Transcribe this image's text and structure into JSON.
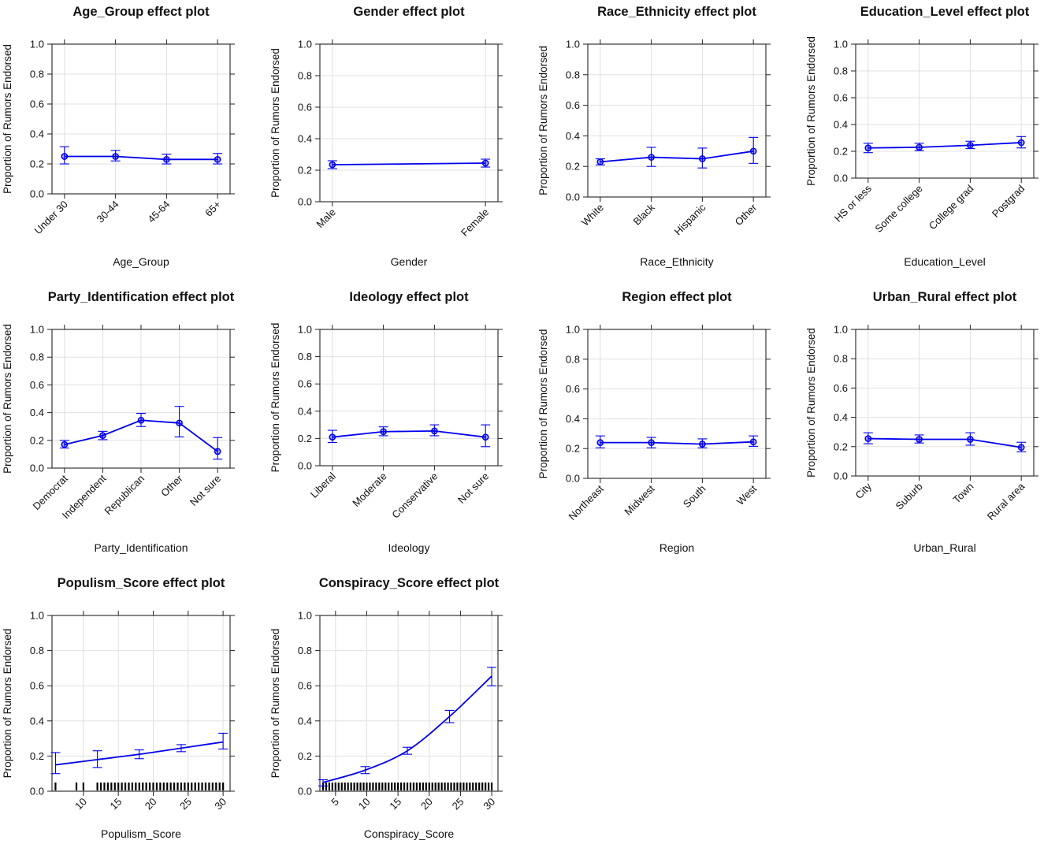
{
  "colors": {
    "series": "#0000ee",
    "grid": "#e0e0e0",
    "axis": "#222222",
    "rug": "#000000"
  },
  "ylabel": "Proportion of Rumors Endorsed",
  "chart_data": [
    {
      "type": "line",
      "title": "Age_Group effect plot",
      "xlabel": "Age_Group",
      "ylabel": "Proportion of Rumors Endorsed",
      "categories": [
        "Under 30",
        "30-44",
        "45-64",
        "65+"
      ],
      "values": [
        0.25,
        0.25,
        0.23,
        0.23
      ],
      "lower": [
        0.2,
        0.22,
        0.2,
        0.2
      ],
      "upper": [
        0.315,
        0.29,
        0.265,
        0.27
      ],
      "ylim": [
        0,
        1
      ],
      "yticks": [
        "0.0",
        "0.2",
        "0.4",
        "0.6",
        "0.8",
        "1.0"
      ]
    },
    {
      "type": "line",
      "title": "Gender effect plot",
      "xlabel": "Gender",
      "ylabel": "Proportion of Rumors Endorsed",
      "categories": [
        "Male",
        "Female"
      ],
      "values": [
        0.235,
        0.245
      ],
      "lower": [
        0.21,
        0.22
      ],
      "upper": [
        0.26,
        0.27
      ],
      "ylim": [
        0,
        1
      ],
      "yticks": [
        "0.0",
        "0.2",
        "0.4",
        "0.6",
        "0.8",
        "1.0"
      ]
    },
    {
      "type": "line",
      "title": "Race_Ethnicity effect plot",
      "xlabel": "Race_Ethnicity",
      "ylabel": "Proportion of Rumors Endorsed",
      "categories": [
        "White",
        "Black",
        "Hispanic",
        "Other"
      ],
      "values": [
        0.23,
        0.26,
        0.25,
        0.3
      ],
      "lower": [
        0.21,
        0.2,
        0.19,
        0.22
      ],
      "upper": [
        0.25,
        0.325,
        0.32,
        0.39
      ],
      "ylim": [
        0,
        1
      ],
      "yticks": [
        "0.0",
        "0.2",
        "0.4",
        "0.6",
        "0.8",
        "1.0"
      ]
    },
    {
      "type": "line",
      "title": "Education_Level effect plot",
      "xlabel": "Education_Level",
      "ylabel": "Proportion of Rumors Endorsed",
      "categories": [
        "HS or less",
        "Some college",
        "College grad",
        "Postgrad"
      ],
      "values": [
        0.225,
        0.23,
        0.245,
        0.265
      ],
      "lower": [
        0.19,
        0.205,
        0.22,
        0.225
      ],
      "upper": [
        0.26,
        0.26,
        0.275,
        0.31
      ],
      "ylim": [
        0,
        1
      ],
      "yticks": [
        "0.0",
        "0.2",
        "0.4",
        "0.6",
        "0.8",
        "1.0"
      ]
    },
    {
      "type": "line",
      "title": "Party_Identification effect plot",
      "xlabel": "Party_Identification",
      "ylabel": "Proportion of Rumors Endorsed",
      "categories": [
        "Democrat",
        "Independent",
        "Republican",
        "Other",
        "Not sure"
      ],
      "values": [
        0.17,
        0.235,
        0.345,
        0.325,
        0.12
      ],
      "lower": [
        0.145,
        0.205,
        0.3,
        0.225,
        0.065
      ],
      "upper": [
        0.2,
        0.265,
        0.395,
        0.445,
        0.22
      ],
      "ylim": [
        0,
        1
      ],
      "yticks": [
        "0.0",
        "0.2",
        "0.4",
        "0.6",
        "0.8",
        "1.0"
      ]
    },
    {
      "type": "line",
      "title": "Ideology effect plot",
      "xlabel": "Ideology",
      "ylabel": "Proportion of Rumors Endorsed",
      "categories": [
        "Liberal",
        "Moderate",
        "Conservative",
        "Not sure"
      ],
      "values": [
        0.21,
        0.25,
        0.255,
        0.21
      ],
      "lower": [
        0.17,
        0.22,
        0.22,
        0.14
      ],
      "upper": [
        0.26,
        0.285,
        0.3,
        0.3
      ],
      "ylim": [
        0,
        1
      ],
      "yticks": [
        "0.0",
        "0.2",
        "0.4",
        "0.6",
        "0.8",
        "1.0"
      ]
    },
    {
      "type": "line",
      "title": "Region effect plot",
      "xlabel": "Region",
      "ylabel": "Proportion of Rumors Endorsed",
      "categories": [
        "Northeast",
        "Midwest",
        "South",
        "West"
      ],
      "values": [
        0.24,
        0.24,
        0.23,
        0.245
      ],
      "lower": [
        0.205,
        0.205,
        0.205,
        0.215
      ],
      "upper": [
        0.285,
        0.275,
        0.265,
        0.285
      ],
      "ylim": [
        0,
        1
      ],
      "yticks": [
        "0.0",
        "0.2",
        "0.4",
        "0.6",
        "0.8",
        "1.0"
      ]
    },
    {
      "type": "line",
      "title": "Urban_Rural effect plot",
      "xlabel": "Urban_Rural",
      "ylabel": "Proportion of Rumors Endorsed",
      "categories": [
        "City",
        "Suburb",
        "Town",
        "Rural area"
      ],
      "values": [
        0.255,
        0.25,
        0.25,
        0.195
      ],
      "lower": [
        0.22,
        0.225,
        0.21,
        0.165
      ],
      "upper": [
        0.295,
        0.28,
        0.295,
        0.23
      ],
      "ylim": [
        0,
        1
      ],
      "yticks": [
        "0.0",
        "0.2",
        "0.4",
        "0.6",
        "0.8",
        "1.0"
      ]
    },
    {
      "type": "line",
      "title": "Populism_Score effect plot",
      "xlabel": "Populism_Score",
      "ylabel": "Proportion of Rumors Endorsed",
      "x": [
        6,
        12,
        18,
        24,
        30
      ],
      "values": [
        0.15,
        0.18,
        0.21,
        0.245,
        0.28
      ],
      "lower": [
        0.1,
        0.135,
        0.185,
        0.225,
        0.24
      ],
      "upper": [
        0.22,
        0.23,
        0.235,
        0.265,
        0.33
      ],
      "xlim": [
        5.5,
        31
      ],
      "xticks": [
        10,
        15,
        20,
        25,
        30
      ],
      "rug": [
        6,
        9,
        10,
        12,
        12.5,
        13,
        13.5,
        14,
        14.5,
        15,
        15.5,
        16,
        16.5,
        17,
        17.5,
        18,
        18.5,
        19,
        19.5,
        20,
        20.5,
        21,
        21.5,
        22,
        22.5,
        23,
        23.5,
        24,
        24.5,
        25,
        25.5,
        26,
        26.5,
        27,
        27.5,
        28,
        28.5,
        29,
        29.5,
        30
      ],
      "ylim": [
        0,
        1
      ],
      "yticks": [
        "0.0",
        "0.2",
        "0.4",
        "0.6",
        "0.8",
        "1.0"
      ]
    },
    {
      "type": "line",
      "title": "Conspiracy_Score effect plot",
      "xlabel": "Conspiracy_Score",
      "ylabel": "Proportion of Rumors Endorsed",
      "x": [
        3,
        9.75,
        16.5,
        23.25,
        30
      ],
      "values": [
        0.05,
        0.12,
        0.23,
        0.425,
        0.655
      ],
      "lower": [
        0.03,
        0.1,
        0.21,
        0.39,
        0.6
      ],
      "upper": [
        0.065,
        0.14,
        0.25,
        0.46,
        0.705
      ],
      "xlim": [
        2.5,
        31
      ],
      "xticks": [
        5,
        10,
        15,
        20,
        25,
        30
      ],
      "rug": [
        3,
        3.5,
        4,
        4.5,
        5,
        5.5,
        6,
        6.5,
        7,
        7.5,
        8,
        8.5,
        9,
        9.5,
        10,
        10.5,
        11,
        11.5,
        12,
        12.5,
        13,
        13.5,
        14,
        14.5,
        15,
        15.5,
        16,
        16.5,
        17,
        17.5,
        18,
        18.5,
        19,
        19.5,
        20,
        20.5,
        21,
        21.5,
        22,
        22.5,
        23,
        23.5,
        24,
        24.5,
        25,
        25.5,
        26,
        26.5,
        27,
        27.5,
        28,
        28.5,
        29,
        29.5,
        30
      ],
      "ylim": [
        0,
        1
      ],
      "yticks": [
        "0.0",
        "0.2",
        "0.4",
        "0.6",
        "0.8",
        "1.0"
      ]
    }
  ]
}
